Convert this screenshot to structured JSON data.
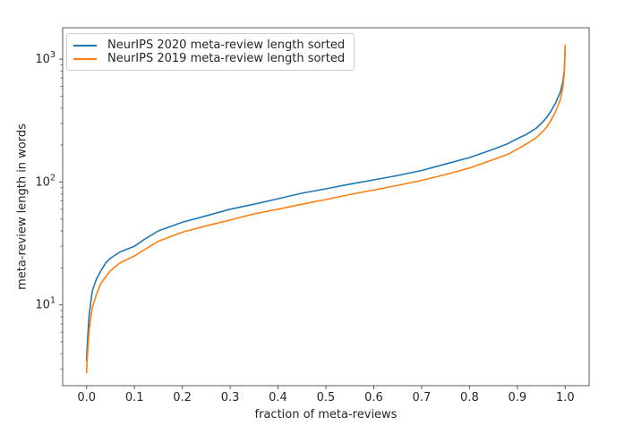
{
  "figure_title": "",
  "accent_colors": {
    "series_blue": "#1f77b4",
    "series_orange": "#ff7f0e",
    "spine_gray": "#595959",
    "text_dark": "#262626",
    "legend_border": "#cccccc"
  },
  "chart_data": {
    "type": "line",
    "title": "",
    "xlabel": "fraction of meta-reviews",
    "ylabel": "meta-review length in words",
    "x_scale": "linear",
    "y_scale": "log",
    "xlim": [
      -0.05,
      1.05
    ],
    "ylim": [
      2.2,
      1800
    ],
    "x_ticks": [
      0.0,
      0.1,
      0.2,
      0.3,
      0.4,
      0.5,
      0.6,
      0.7,
      0.8,
      0.9,
      1.0
    ],
    "x_tick_labels": [
      "0.0",
      "0.1",
      "0.2",
      "0.3",
      "0.4",
      "0.5",
      "0.6",
      "0.7",
      "0.8",
      "0.9",
      "1.0"
    ],
    "y_ticks": [
      10,
      100,
      1000
    ],
    "y_minor_ticks": [
      3,
      4,
      5,
      6,
      7,
      8,
      9,
      20,
      30,
      40,
      50,
      60,
      70,
      80,
      90,
      200,
      300,
      400,
      500,
      600,
      700,
      800,
      900
    ],
    "grid": false,
    "legend_position": "upper left",
    "series": [
      {
        "name": "NeurIPS 2020 meta-review length sorted",
        "color": "#1f77b4",
        "points": [
          [
            0.0,
            3.5
          ],
          [
            0.001,
            4.5
          ],
          [
            0.003,
            6
          ],
          [
            0.005,
            8
          ],
          [
            0.008,
            10
          ],
          [
            0.012,
            13
          ],
          [
            0.02,
            16
          ],
          [
            0.03,
            19
          ],
          [
            0.04,
            22
          ],
          [
            0.05,
            24
          ],
          [
            0.07,
            27
          ],
          [
            0.09,
            29
          ],
          [
            0.1,
            30
          ],
          [
            0.12,
            34
          ],
          [
            0.15,
            40
          ],
          [
            0.2,
            47
          ],
          [
            0.25,
            53
          ],
          [
            0.3,
            60
          ],
          [
            0.35,
            66
          ],
          [
            0.4,
            73
          ],
          [
            0.45,
            81
          ],
          [
            0.5,
            88
          ],
          [
            0.55,
            96
          ],
          [
            0.6,
            104
          ],
          [
            0.65,
            113
          ],
          [
            0.7,
            124
          ],
          [
            0.75,
            140
          ],
          [
            0.8,
            158
          ],
          [
            0.85,
            185
          ],
          [
            0.88,
            205
          ],
          [
            0.9,
            225
          ],
          [
            0.92,
            245
          ],
          [
            0.94,
            275
          ],
          [
            0.95,
            300
          ],
          [
            0.96,
            330
          ],
          [
            0.97,
            375
          ],
          [
            0.98,
            440
          ],
          [
            0.99,
            540
          ],
          [
            0.995,
            650
          ],
          [
            0.998,
            800
          ],
          [
            1.0,
            1200
          ]
        ]
      },
      {
        "name": "NeurIPS 2019 meta-review length sorted",
        "color": "#ff7f0e",
        "points": [
          [
            0.0,
            2.8
          ],
          [
            0.001,
            3.5
          ],
          [
            0.003,
            4.5
          ],
          [
            0.005,
            6
          ],
          [
            0.008,
            7.5
          ],
          [
            0.012,
            9.5
          ],
          [
            0.02,
            12
          ],
          [
            0.03,
            15
          ],
          [
            0.04,
            17
          ],
          [
            0.05,
            19
          ],
          [
            0.07,
            22
          ],
          [
            0.09,
            24
          ],
          [
            0.1,
            25
          ],
          [
            0.12,
            28
          ],
          [
            0.15,
            33
          ],
          [
            0.2,
            39
          ],
          [
            0.25,
            44
          ],
          [
            0.3,
            49
          ],
          [
            0.35,
            55
          ],
          [
            0.4,
            60
          ],
          [
            0.45,
            66
          ],
          [
            0.5,
            72
          ],
          [
            0.55,
            79
          ],
          [
            0.6,
            86
          ],
          [
            0.65,
            94
          ],
          [
            0.7,
            103
          ],
          [
            0.75,
            115
          ],
          [
            0.8,
            130
          ],
          [
            0.85,
            152
          ],
          [
            0.88,
            168
          ],
          [
            0.9,
            185
          ],
          [
            0.92,
            205
          ],
          [
            0.94,
            230
          ],
          [
            0.95,
            250
          ],
          [
            0.96,
            275
          ],
          [
            0.97,
            315
          ],
          [
            0.98,
            375
          ],
          [
            0.99,
            470
          ],
          [
            0.995,
            580
          ],
          [
            0.998,
            750
          ],
          [
            1.0,
            1300
          ]
        ]
      }
    ]
  }
}
